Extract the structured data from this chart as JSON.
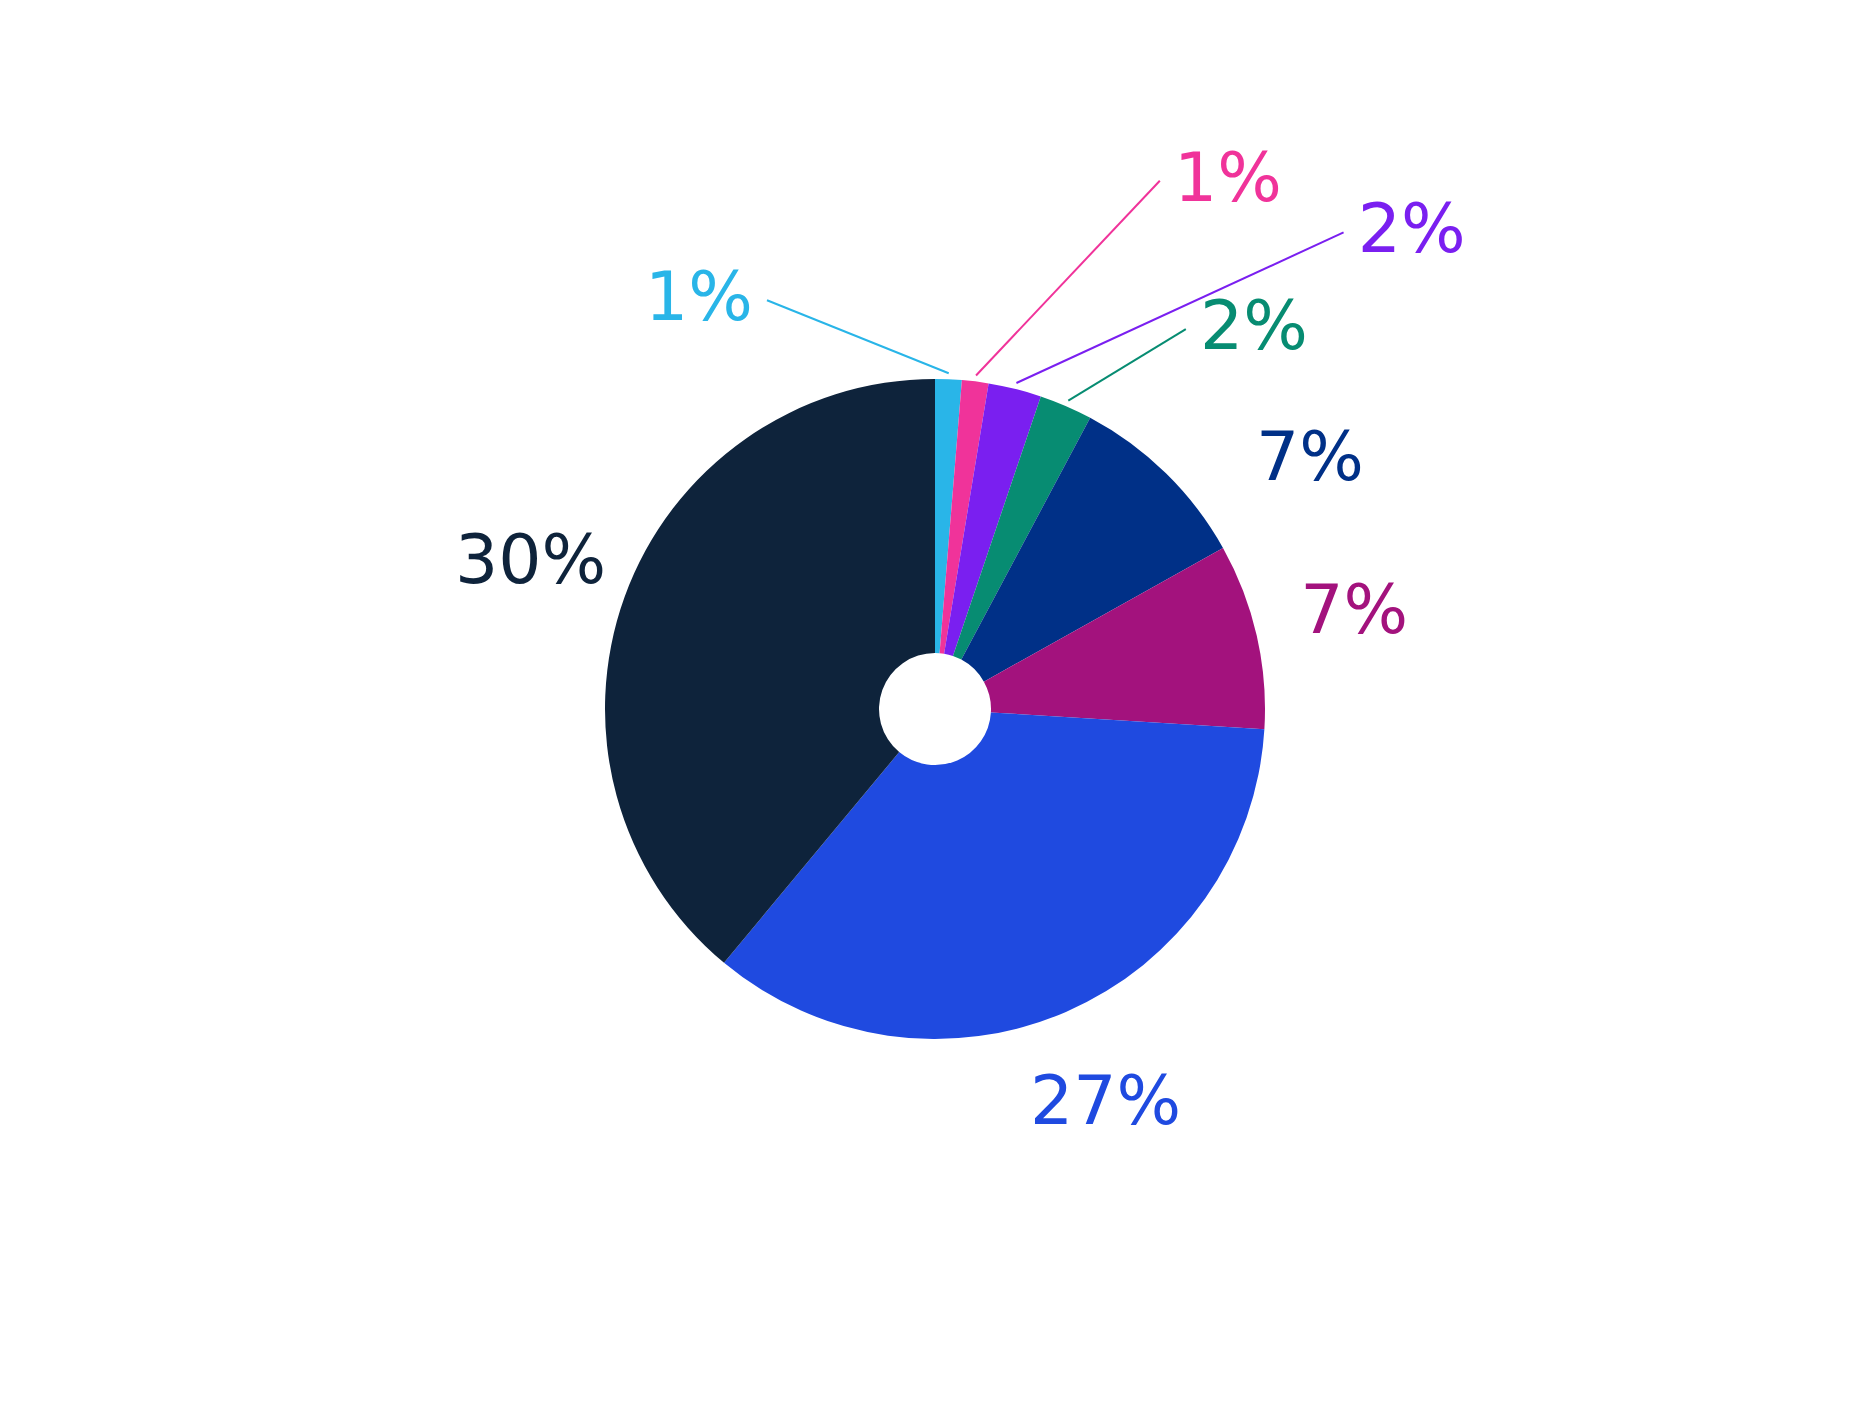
{
  "chart_data": {
    "type": "donut",
    "categories": [
      null,
      null,
      null,
      null,
      null,
      null,
      null,
      null
    ],
    "values": [
      1,
      1,
      2,
      2,
      7,
      7,
      27,
      30
    ],
    "colors": [
      "#29b5e8",
      "#f0339a",
      "#7a1ff0",
      "#078c72",
      "#003087",
      "#a3127d",
      "#1f4ae0",
      "#0e233b"
    ],
    "data_labels": true,
    "value_labels": [
      "1%",
      "1%",
      "2%",
      "2%",
      "7%",
      "7%",
      "27%",
      "30%"
    ],
    "legend": false
  }
}
